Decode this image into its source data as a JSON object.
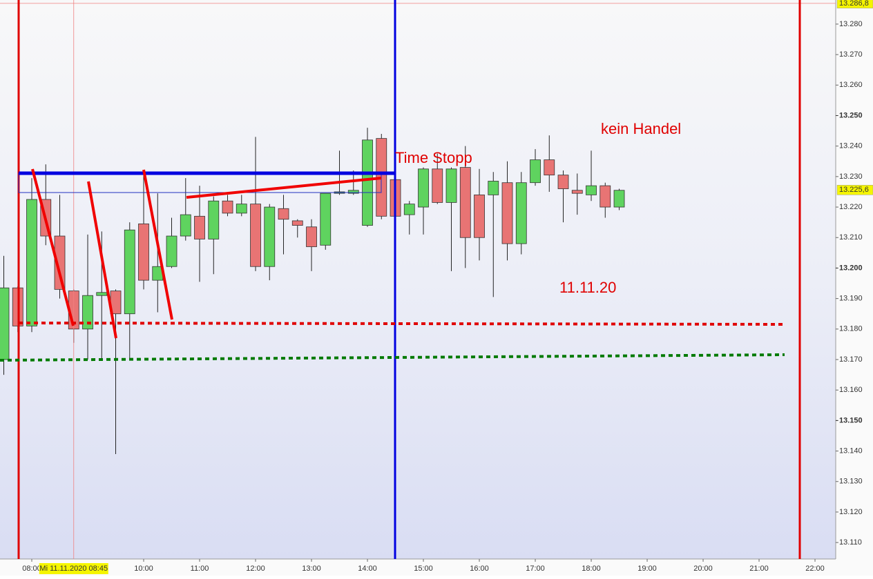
{
  "chart_data": {
    "type": "candlestick",
    "x": [
      7.5,
      7.75,
      8,
      8.25,
      8.5,
      8.75,
      9,
      9.25,
      9.5,
      9.75,
      10,
      10.25,
      10.5,
      10.75,
      11,
      11.25,
      11.5,
      11.75,
      12,
      12.25,
      12.5,
      12.75,
      13,
      13.25,
      13.5,
      13.75,
      14,
      14.25,
      14.5,
      14.75,
      15,
      15.25,
      15.5,
      15.75,
      16,
      16.25,
      16.5,
      16.75,
      17,
      17.25,
      17.5,
      17.75,
      18,
      18.25,
      18.5
    ],
    "open": [
      13170,
      13193.5,
      13181,
      13222.5,
      13210.5,
      13192.5,
      13180,
      13191,
      13192.5,
      13185,
      13214.5,
      13196,
      13200.5,
      13210.5,
      13217,
      13209.5,
      13222,
      13218,
      13221,
      13200.5,
      13219.5,
      13215.5,
      13213.5,
      13207.5,
      13224.5,
      13224.5,
      13214,
      13242.5,
      13229,
      13217.5,
      13220,
      13232.5,
      13221.5,
      13233,
      13224,
      13224,
      13228,
      13208,
      13228,
      13235.5,
      13230.5,
      13225.5,
      13224,
      13227,
      13220
    ],
    "high": [
      13204,
      13194,
      13229.5,
      13234,
      13224,
      13193,
      13211,
      13212,
      13193,
      13215,
      13232,
      13224.5,
      13216.5,
      13229.5,
      13227,
      13223.5,
      13224,
      13224,
      13243,
      13221,
      13224,
      13216,
      13216,
      13224.5,
      13238.5,
      13232,
      13246,
      13244,
      13230,
      13222,
      13233,
      13237.5,
      13233,
      13240,
      13232.5,
      13231.5,
      13235,
      13231.5,
      13239,
      13243.5,
      13232,
      13231,
      13238.5,
      13228,
      13226
    ],
    "low": [
      13165,
      13179,
      13179,
      13207.5,
      13190,
      13175.5,
      13170,
      13170,
      13139,
      13170,
      13193,
      13185.5,
      13200,
      13209,
      13195.5,
      13198,
      13217,
      13217,
      13199,
      13196,
      13204.5,
      13210,
      13199,
      13206,
      13224,
      13224,
      13213.5,
      13216,
      13212.5,
      13211,
      13211,
      13221,
      13199,
      13200,
      13202.5,
      13190.5,
      13202.5,
      13204.5,
      13227,
      13225,
      13215,
      13217.5,
      13222,
      13216.5,
      13219
    ],
    "close": [
      13193.5,
      13181,
      13222.5,
      13210.5,
      13193,
      13180,
      13191,
      13192,
      13185,
      13212.5,
      13196,
      13200.5,
      13210.5,
      13217.5,
      13209.5,
      13222,
      13218,
      13221,
      13200.5,
      13220,
      13216,
      13214,
      13207,
      13224.5,
      13225,
      13225.5,
      13242,
      13217,
      13217,
      13221,
      13232.5,
      13221.5,
      13232.5,
      13210,
      13210,
      13228.5,
      13208,
      13228,
      13235.5,
      13230.5,
      13226,
      13224.5,
      13227,
      13220,
      13225.5
    ],
    "up_color": "#5fd35f",
    "down_color": "#e87474",
    "xlim": [
      7.432,
      22.37
    ],
    "xticks": [
      {
        "value": 8,
        "label": "08:00"
      },
      {
        "value": 10,
        "label": "10:00"
      },
      {
        "value": 11,
        "label": "11:00"
      },
      {
        "value": 12,
        "label": "12:00"
      },
      {
        "value": 13,
        "label": "13:00"
      },
      {
        "value": 14,
        "label": "14:00"
      },
      {
        "value": 15,
        "label": "15:00"
      },
      {
        "value": 16,
        "label": "16:00"
      },
      {
        "value": 17,
        "label": "17:00"
      },
      {
        "value": 18,
        "label": "18:00"
      },
      {
        "value": 19,
        "label": "19:00"
      },
      {
        "value": 20,
        "label": "20:00"
      },
      {
        "value": 21,
        "label": "21:00"
      },
      {
        "value": 22,
        "label": "22:00"
      }
    ],
    "ylim": [
      13104.6,
      13287.9
    ],
    "yticks": [
      {
        "value": 13110,
        "label": "13.110"
      },
      {
        "value": 13120,
        "label": "13.120"
      },
      {
        "value": 13130,
        "label": "13.130"
      },
      {
        "value": 13140,
        "label": "13.140"
      },
      {
        "value": 13150,
        "label": "13.150"
      },
      {
        "value": 13160,
        "label": "13.160"
      },
      {
        "value": 13170,
        "label": "13.170"
      },
      {
        "value": 13180,
        "label": "13.180"
      },
      {
        "value": 13190,
        "label": "13.190"
      },
      {
        "value": 13200,
        "label": "13.200"
      },
      {
        "value": 13210,
        "label": "13.210"
      },
      {
        "value": 13220,
        "label": "13.220"
      },
      {
        "value": 13230,
        "label": "13.230"
      },
      {
        "value": 13240,
        "label": "13.240"
      },
      {
        "value": 13250,
        "label": "13.250"
      },
      {
        "value": 13260,
        "label": "13.260"
      },
      {
        "value": 13270,
        "label": "13.270"
      },
      {
        "value": 13280,
        "label": "13.280"
      }
    ],
    "bold_yticks": [
      13150,
      13200,
      13250
    ],
    "crosshair_time": {
      "value": 8.75,
      "label": "Mi 11.11.2020 08:45"
    },
    "price_markers": [
      {
        "value": 13286.8,
        "label": "13.286,8"
      },
      {
        "value": 13225.6,
        "label": "13.225,6"
      }
    ],
    "annotations": [
      "Time Stopp",
      "kein Handel",
      "11.11.20"
    ]
  }
}
